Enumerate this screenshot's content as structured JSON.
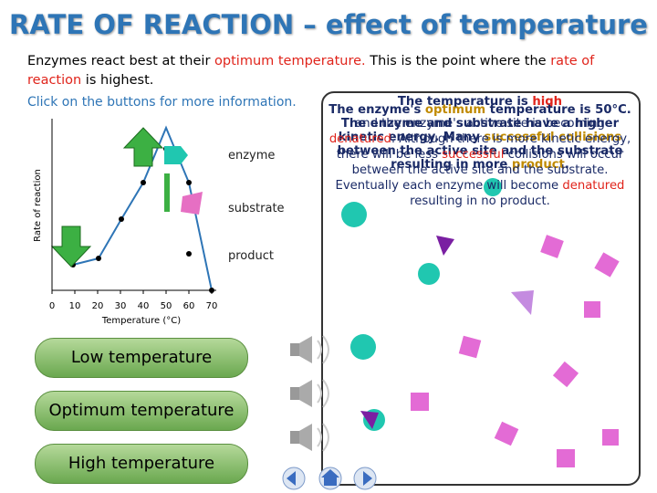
{
  "header": {
    "title": "RATE OF REACTION – effect of temperature"
  },
  "intro": [
    "Enzymes react best at their ",
    "optimum temperature.",
    " This is the point where the ",
    "rate of reaction",
    " is highest."
  ],
  "instruction": "Click on the buttons for more information.",
  "graph": {
    "y_label": "Rate of reaction",
    "x_label": "Temperature (°C)",
    "xticks": [
      0,
      10,
      20,
      30,
      40,
      50,
      60,
      70
    ],
    "labels": [
      "enzyme",
      "substrate",
      "product"
    ]
  },
  "info": {
    "heading": [
      "The temperature is ",
      "high"
    ],
    "optimum": [
      "The enzyme's ",
      "optimum",
      " temperature is 50°C. The enzyme and substrate have a higher kinetic energy. Many ",
      "successful collisions",
      " between the active site and the substrate resulting in more ",
      "product",
      "."
    ],
    "high": [
      "and the enzyme's active site is becoming ",
      "denatured",
      ". Although there is more kinetic energy, there will be less ",
      "successful",
      " collisions will occur between the active site and the substrate. Eventually each enzyme will become ",
      "denatured",
      " resulting in no product."
    ]
  },
  "buttons": [
    "Low temperature",
    "Optimum temperature",
    "High temperature"
  ]
}
